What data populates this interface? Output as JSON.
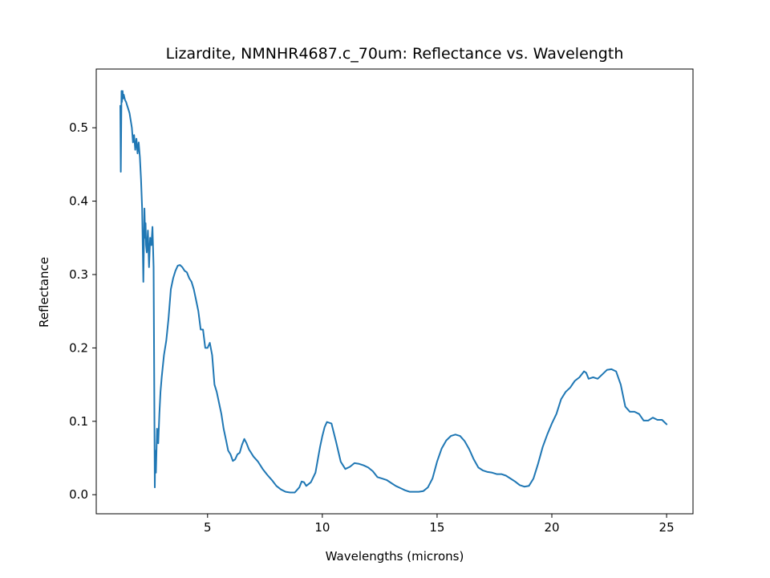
{
  "chart_data": {
    "type": "line",
    "title": "Lizardite, NMNHR4687.c_70um: Reflectance vs. Wavelength",
    "xlabel": "Wavelengths (microns)",
    "ylabel": "Reflectance",
    "xlim": [
      0.15,
      26.15
    ],
    "ylim": [
      -0.026,
      0.58
    ],
    "xticks": [
      5,
      10,
      15,
      20,
      25
    ],
    "yticks": [
      0.0,
      0.1,
      0.2,
      0.3,
      0.4,
      0.5
    ],
    "xtick_labels": [
      "5",
      "10",
      "15",
      "20",
      "25"
    ],
    "ytick_labels": [
      "0.0",
      "0.1",
      "0.2",
      "0.3",
      "0.4",
      "0.5"
    ],
    "grid": false,
    "series": [
      {
        "color": "#1f77b4",
        "x": [
          1.2,
          1.22,
          1.25,
          1.27,
          1.3,
          1.32,
          1.35,
          1.4,
          1.45,
          1.5,
          1.55,
          1.6,
          1.7,
          1.75,
          1.8,
          1.85,
          1.9,
          1.95,
          2.0,
          2.05,
          2.1,
          2.15,
          2.2,
          2.25,
          2.28,
          2.3,
          2.32,
          2.35,
          2.4,
          2.45,
          2.5,
          2.55,
          2.6,
          2.65,
          2.7,
          2.72,
          2.75,
          2.8,
          2.85,
          2.9,
          2.95,
          3.0,
          3.1,
          3.2,
          3.3,
          3.4,
          3.5,
          3.6,
          3.7,
          3.8,
          3.9,
          4.0,
          4.1,
          4.2,
          4.3,
          4.4,
          4.5,
          4.6,
          4.7,
          4.8,
          4.9,
          5.0,
          5.1,
          5.2,
          5.3,
          5.4,
          5.5,
          5.6,
          5.7,
          5.8,
          5.9,
          6.0,
          6.1,
          6.2,
          6.3,
          6.4,
          6.5,
          6.6,
          6.7,
          6.8,
          7.0,
          7.2,
          7.4,
          7.6,
          7.8,
          8.0,
          8.2,
          8.4,
          8.6,
          8.8,
          9.0,
          9.1,
          9.2,
          9.3,
          9.5,
          9.7,
          9.9,
          10.0,
          10.1,
          10.2,
          10.4,
          10.6,
          10.8,
          11.0,
          11.2,
          11.4,
          11.6,
          11.8,
          12.0,
          12.2,
          12.4,
          12.6,
          12.8,
          13.0,
          13.2,
          13.4,
          13.6,
          13.8,
          14.0,
          14.2,
          14.4,
          14.6,
          14.8,
          15.0,
          15.2,
          15.4,
          15.6,
          15.8,
          16.0,
          16.2,
          16.4,
          16.6,
          16.8,
          17.0,
          17.2,
          17.4,
          17.6,
          17.8,
          18.0,
          18.2,
          18.4,
          18.6,
          18.8,
          19.0,
          19.2,
          19.4,
          19.6,
          19.8,
          20.0,
          20.2,
          20.4,
          20.6,
          20.8,
          21.0,
          21.2,
          21.4,
          21.5,
          21.6,
          21.8,
          22.0,
          22.2,
          22.4,
          22.6,
          22.8,
          23.0,
          23.2,
          23.4,
          23.6,
          23.8,
          24.0,
          24.2,
          24.4,
          24.6,
          24.8,
          25.0
        ],
        "y": [
          0.53,
          0.44,
          0.55,
          0.535,
          0.55,
          0.54,
          0.545,
          0.538,
          0.535,
          0.53,
          0.525,
          0.52,
          0.5,
          0.48,
          0.49,
          0.47,
          0.485,
          0.465,
          0.48,
          0.46,
          0.43,
          0.39,
          0.29,
          0.39,
          0.35,
          0.37,
          0.34,
          0.33,
          0.36,
          0.31,
          0.35,
          0.34,
          0.365,
          0.31,
          0.01,
          0.06,
          0.03,
          0.09,
          0.07,
          0.11,
          0.14,
          0.16,
          0.19,
          0.21,
          0.24,
          0.28,
          0.295,
          0.305,
          0.312,
          0.313,
          0.31,
          0.305,
          0.303,
          0.295,
          0.29,
          0.28,
          0.265,
          0.25,
          0.225,
          0.225,
          0.2,
          0.2,
          0.207,
          0.19,
          0.15,
          0.14,
          0.125,
          0.11,
          0.09,
          0.075,
          0.06,
          0.055,
          0.046,
          0.048,
          0.055,
          0.057,
          0.068,
          0.076,
          0.07,
          0.062,
          0.052,
          0.045,
          0.035,
          0.027,
          0.02,
          0.012,
          0.007,
          0.004,
          0.003,
          0.003,
          0.01,
          0.018,
          0.017,
          0.012,
          0.017,
          0.03,
          0.065,
          0.08,
          0.092,
          0.099,
          0.097,
          0.072,
          0.045,
          0.035,
          0.038,
          0.043,
          0.042,
          0.04,
          0.037,
          0.032,
          0.024,
          0.022,
          0.02,
          0.016,
          0.012,
          0.009,
          0.006,
          0.004,
          0.004,
          0.004,
          0.005,
          0.01,
          0.022,
          0.045,
          0.063,
          0.074,
          0.08,
          0.082,
          0.08,
          0.073,
          0.062,
          0.048,
          0.037,
          0.033,
          0.031,
          0.03,
          0.028,
          0.028,
          0.026,
          0.022,
          0.018,
          0.013,
          0.011,
          0.012,
          0.022,
          0.042,
          0.065,
          0.082,
          0.097,
          0.11,
          0.13,
          0.14,
          0.146,
          0.155,
          0.16,
          0.168,
          0.166,
          0.158,
          0.16,
          0.158,
          0.164,
          0.17,
          0.171,
          0.168,
          0.15,
          0.12,
          0.113,
          0.113,
          0.11,
          0.101,
          0.101,
          0.105,
          0.102,
          0.102,
          0.096
        ]
      }
    ]
  }
}
